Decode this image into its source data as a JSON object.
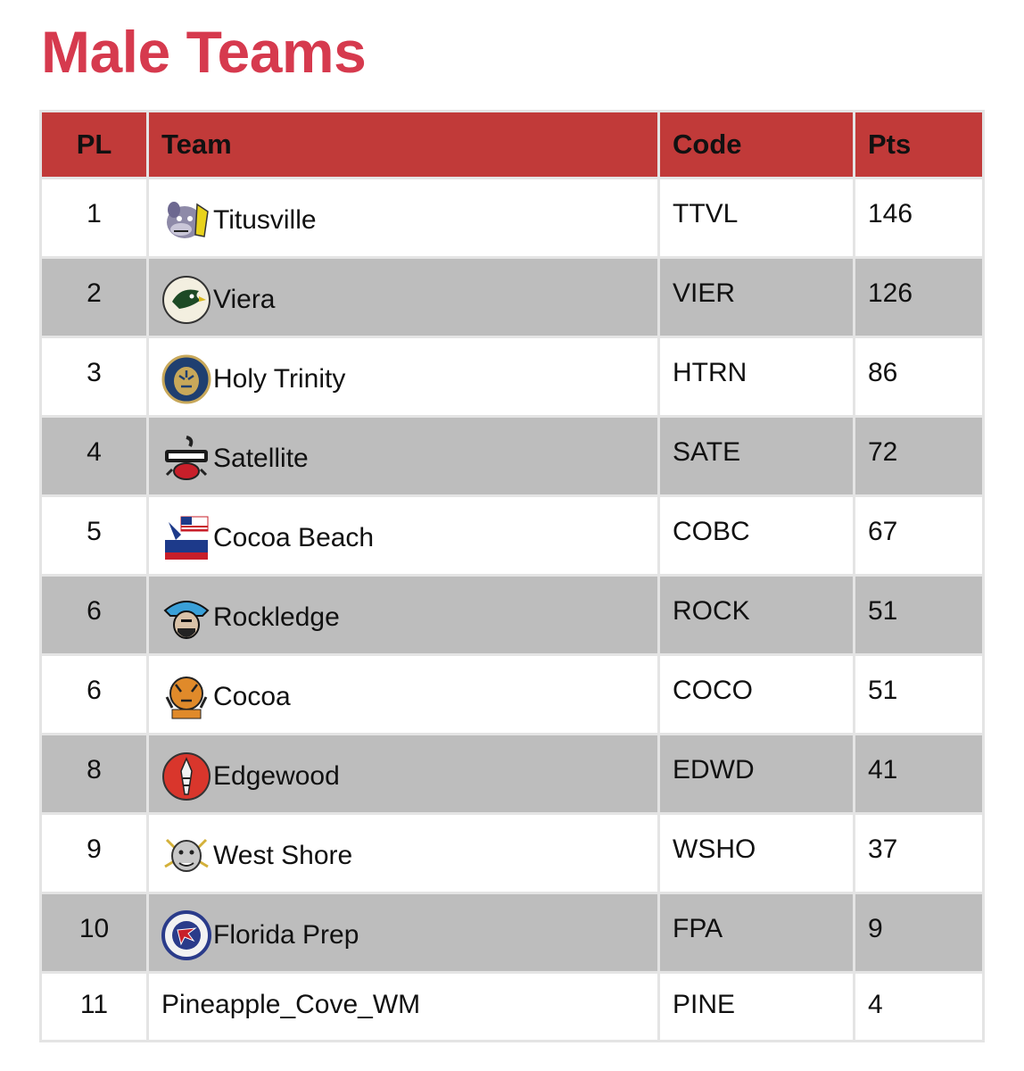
{
  "title": "Male Teams",
  "headers": {
    "pl": "PL",
    "team": "Team",
    "code": "Code",
    "pts": "Pts"
  },
  "rows": [
    {
      "pl": "1",
      "team": "Titusville",
      "code": "TTVL",
      "pts": "146",
      "logo": "bulldog-logo-icon"
    },
    {
      "pl": "2",
      "team": "Viera",
      "code": "VIER",
      "pts": "126",
      "logo": "hawk-logo-icon"
    },
    {
      "pl": "3",
      "team": "Holy Trinity",
      "code": "HTRN",
      "pts": "86",
      "logo": "tiger-crest-logo-icon"
    },
    {
      "pl": "4",
      "team": "Satellite",
      "code": "SATE",
      "pts": "72",
      "logo": "scorpion-logo-icon"
    },
    {
      "pl": "5",
      "team": "Cocoa Beach",
      "code": "COBC",
      "pts": "67",
      "logo": "minutemen-logo-icon"
    },
    {
      "pl": "6",
      "team": "Rockledge",
      "code": "ROCK",
      "pts": "51",
      "logo": "raider-logo-icon"
    },
    {
      "pl": "6",
      "team": "Cocoa",
      "code": "COCO",
      "pts": "51",
      "logo": "tiger-logo-icon"
    },
    {
      "pl": "8",
      "team": "Edgewood",
      "code": "EDWD",
      "pts": "41",
      "logo": "feather-logo-icon"
    },
    {
      "pl": "9",
      "team": "West Shore",
      "code": "WSHO",
      "pts": "37",
      "logo": "wildcat-logo-icon"
    },
    {
      "pl": "10",
      "team": "Florida Prep",
      "code": "FPA",
      "pts": "9",
      "logo": "falcon-logo-icon"
    },
    {
      "pl": "11",
      "team": "Pineapple_Cove_WM",
      "code": "PINE",
      "pts": "4",
      "logo": ""
    }
  ],
  "colors": {
    "title": "#d63a4e",
    "header_bg": "#c13a39",
    "row_alt": "#bdbdbd",
    "grid": "#e4e4e4"
  }
}
